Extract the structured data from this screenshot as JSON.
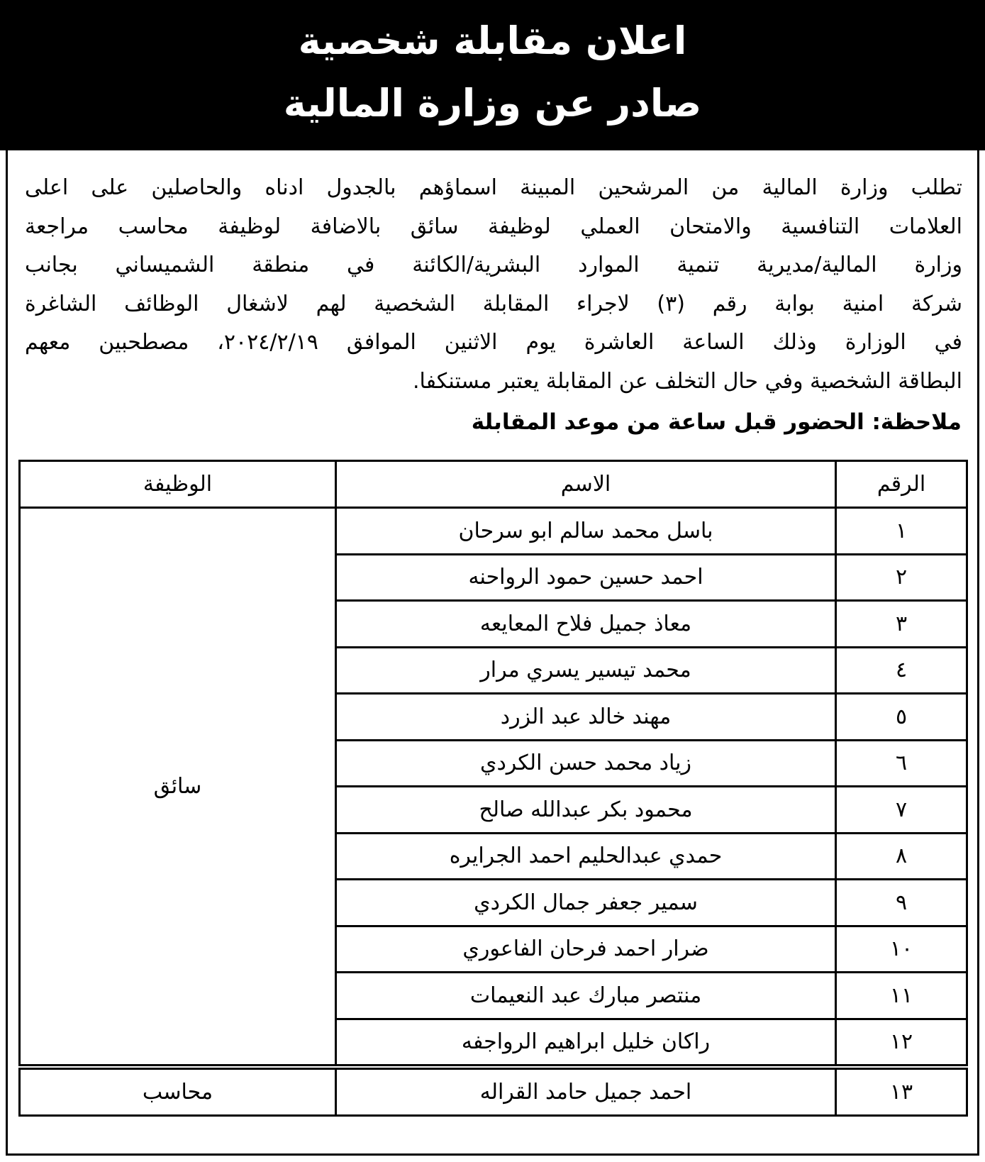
{
  "header": {
    "title_lines": [
      "اعلان مقابلة شخصية",
      "صادر عن وزارة المالية"
    ]
  },
  "body": {
    "paragraph_lines": [
      "تطلب وزارة المالية من المرشحين المبينة اسماؤهم بالجدول ادناه والحاصلين على اعلى",
      "العلامات التنافسية والامتحان العملي لوظيفة سائق بالاضافة لوظيفة محاسب مراجعة",
      "وزارة المالية/مديرية تنمية الموارد البشرية/الكائنة في منطقة الشميساني بجانب",
      "شركة امنية بوابة رقم (٣) لاجراء المقابلة الشخصية لهم لاشغال الوظائف الشاغرة",
      "في الوزارة وذلك الساعة العاشرة يوم الاثنين الموافق ٢٠٢٤/٢/١٩، مصطحبين معهم",
      "البطاقة الشخصية وفي حال التخلف عن المقابلة يعتبر مستنكفا."
    ],
    "note": "ملاحظة: الحضور قبل ساعة من موعد المقابلة"
  },
  "table": {
    "headers": [
      "الرقم",
      "الاسم",
      "الوظيفة"
    ],
    "rows": [
      [
        "١",
        "باسل محمد سالم ابو سرحان",
        "سائق"
      ],
      [
        "٢",
        "احمد حسين حمود الرواحنه"
      ],
      [
        "٣",
        "معاذ جميل فلاح المعايعه"
      ],
      [
        "٤",
        "محمد تيسير يسري مرار"
      ],
      [
        "٥",
        "مهند خالد عبد الزرد"
      ],
      [
        "٦",
        "زياد محمد حسن الكردي"
      ],
      [
        "٧",
        "محمود بكر عبدالله صالح"
      ],
      [
        "٨",
        "حمدي عبدالحليم احمد الجرايره"
      ],
      [
        "٩",
        "سمير جعفر جمال الكردي"
      ],
      [
        "١٠",
        "ضرار احمد فرحان الفاعوري"
      ],
      [
        "١١",
        "منتصر مبارك عبد النعيمات"
      ],
      [
        "١٢",
        "راكان خليل ابراهيم الرواجفه"
      ],
      [
        "١٣",
        "احمد جميل حامد القراله",
        "محاسب"
      ]
    ]
  }
}
